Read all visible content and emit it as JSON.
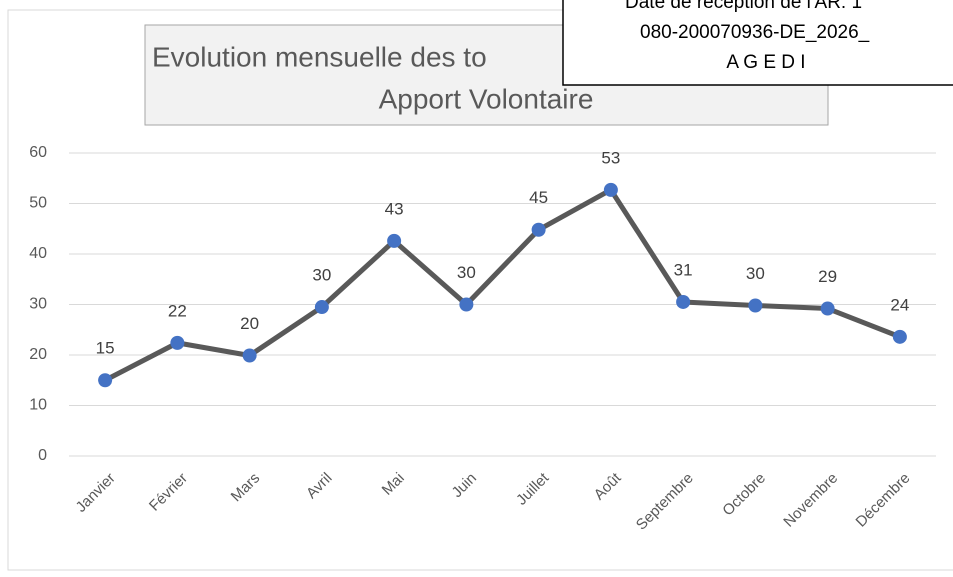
{
  "chart_data": {
    "type": "line",
    "title": [
      "Evolution mensuelle des to",
      "Apport Volontaire"
    ],
    "categories": [
      "Janvier",
      "Février",
      "Mars",
      "Avril",
      "Mai",
      "Juin",
      "Juillet",
      "Août",
      "Septembre",
      "Octobre",
      "Novembre",
      "Décembre"
    ],
    "series": [
      {
        "color": "#595959",
        "marker_color": "#4472c4",
        "values": [
          15,
          22.4,
          19.9,
          29.5,
          42.6,
          30,
          44.8,
          52.7,
          30.5,
          29.8,
          29.2,
          23.6
        ],
        "value_labels": [
          "15",
          "22",
          "20",
          "30",
          "43",
          "30",
          "45",
          "53",
          "31",
          "30",
          "29",
          "24"
        ]
      }
    ],
    "ylim": [
      0,
      60
    ],
    "yticks": [
      0,
      10,
      20,
      30,
      40,
      50,
      60
    ],
    "grid": true
  },
  "stamp": {
    "lines": [
      "Date de réception de l'AR: 1",
      "080-200070936-DE_2026_",
      "A G E D I"
    ]
  }
}
